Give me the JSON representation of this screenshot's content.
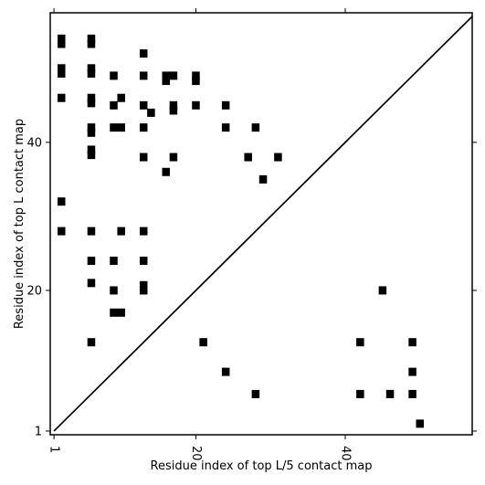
{
  "chart_data": {
    "type": "scatter",
    "marker": "square",
    "xlabel": "Residue index of top L/5 contact map",
    "ylabel": "Residue index of top L contact map",
    "xlim": [
      0.5,
      57
    ],
    "ylim": [
      0.5,
      57.5
    ],
    "xticks": [
      {
        "value": 1,
        "label": "1"
      },
      {
        "value": 20,
        "label": "20"
      },
      {
        "value": 40,
        "label": "40"
      }
    ],
    "yticks": [
      {
        "value": 1,
        "label": "1"
      },
      {
        "value": 20,
        "label": "20"
      },
      {
        "value": 40,
        "label": "40"
      }
    ],
    "diagonal": true,
    "grid": false,
    "colors": {
      "marker": "#000000",
      "axes": "#000000",
      "background": "#ffffff"
    },
    "upper_points": [
      {
        "x": 2,
        "y": 54
      },
      {
        "x": 2,
        "y": 53.3
      },
      {
        "x": 6,
        "y": 54
      },
      {
        "x": 6,
        "y": 53.3
      },
      {
        "x": 13,
        "y": 52
      },
      {
        "x": 2,
        "y": 50
      },
      {
        "x": 2,
        "y": 49.3
      },
      {
        "x": 6,
        "y": 50
      },
      {
        "x": 6,
        "y": 49.3
      },
      {
        "x": 9,
        "y": 49
      },
      {
        "x": 13,
        "y": 49
      },
      {
        "x": 16,
        "y": 49
      },
      {
        "x": 16,
        "y": 48.3
      },
      {
        "x": 17,
        "y": 49
      },
      {
        "x": 20,
        "y": 49
      },
      {
        "x": 20,
        "y": 48.3
      },
      {
        "x": 2,
        "y": 46
      },
      {
        "x": 6,
        "y": 46
      },
      {
        "x": 6,
        "y": 45.3
      },
      {
        "x": 10,
        "y": 46
      },
      {
        "x": 9,
        "y": 45
      },
      {
        "x": 13,
        "y": 45
      },
      {
        "x": 14,
        "y": 44
      },
      {
        "x": 17,
        "y": 45
      },
      {
        "x": 17,
        "y": 44.3
      },
      {
        "x": 20,
        "y": 45
      },
      {
        "x": 24,
        "y": 45
      },
      {
        "x": 6,
        "y": 42
      },
      {
        "x": 6,
        "y": 41.3
      },
      {
        "x": 9,
        "y": 42
      },
      {
        "x": 10,
        "y": 42
      },
      {
        "x": 13,
        "y": 42
      },
      {
        "x": 24,
        "y": 42
      },
      {
        "x": 28,
        "y": 42
      },
      {
        "x": 6,
        "y": 39
      },
      {
        "x": 6,
        "y": 38.3
      },
      {
        "x": 13,
        "y": 38
      },
      {
        "x": 17,
        "y": 38
      },
      {
        "x": 27,
        "y": 38
      },
      {
        "x": 31,
        "y": 38
      },
      {
        "x": 16,
        "y": 36
      },
      {
        "x": 29,
        "y": 35
      },
      {
        "x": 2,
        "y": 32
      },
      {
        "x": 2,
        "y": 28
      },
      {
        "x": 6,
        "y": 28
      },
      {
        "x": 10,
        "y": 28
      },
      {
        "x": 13,
        "y": 28
      },
      {
        "x": 6,
        "y": 24
      },
      {
        "x": 9,
        "y": 24
      },
      {
        "x": 13,
        "y": 24
      },
      {
        "x": 6,
        "y": 21
      },
      {
        "x": 13,
        "y": 20.7
      },
      {
        "x": 13,
        "y": 20
      },
      {
        "x": 9,
        "y": 20
      },
      {
        "x": 9,
        "y": 17
      },
      {
        "x": 10,
        "y": 17
      }
    ],
    "lower_points": [
      {
        "x": 6,
        "y": 13
      },
      {
        "x": 21,
        "y": 13
      },
      {
        "x": 42,
        "y": 13
      },
      {
        "x": 49,
        "y": 13
      },
      {
        "x": 45,
        "y": 20
      },
      {
        "x": 24,
        "y": 9
      },
      {
        "x": 49,
        "y": 9
      },
      {
        "x": 28,
        "y": 6
      },
      {
        "x": 42,
        "y": 6
      },
      {
        "x": 46,
        "y": 6
      },
      {
        "x": 49,
        "y": 6
      },
      {
        "x": 50,
        "y": 2
      }
    ]
  }
}
